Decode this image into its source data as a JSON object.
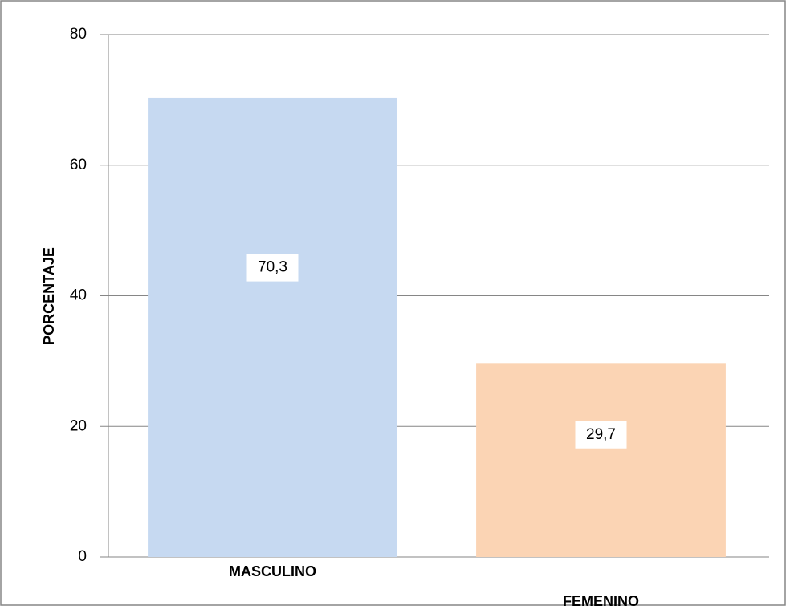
{
  "chart_data": {
    "type": "bar",
    "y_label": "PORCENTAJE",
    "categories": [
      "MASCULINO",
      "FEMENINO"
    ],
    "values": [
      70.3,
      29.7
    ],
    "value_labels": [
      "70,3",
      "29,7"
    ],
    "colors": [
      "#c6d9f1",
      "#fbd4b4"
    ],
    "ylim": [
      0,
      80
    ],
    "yticks": [
      0,
      20,
      40,
      60,
      80
    ],
    "grid": true
  }
}
